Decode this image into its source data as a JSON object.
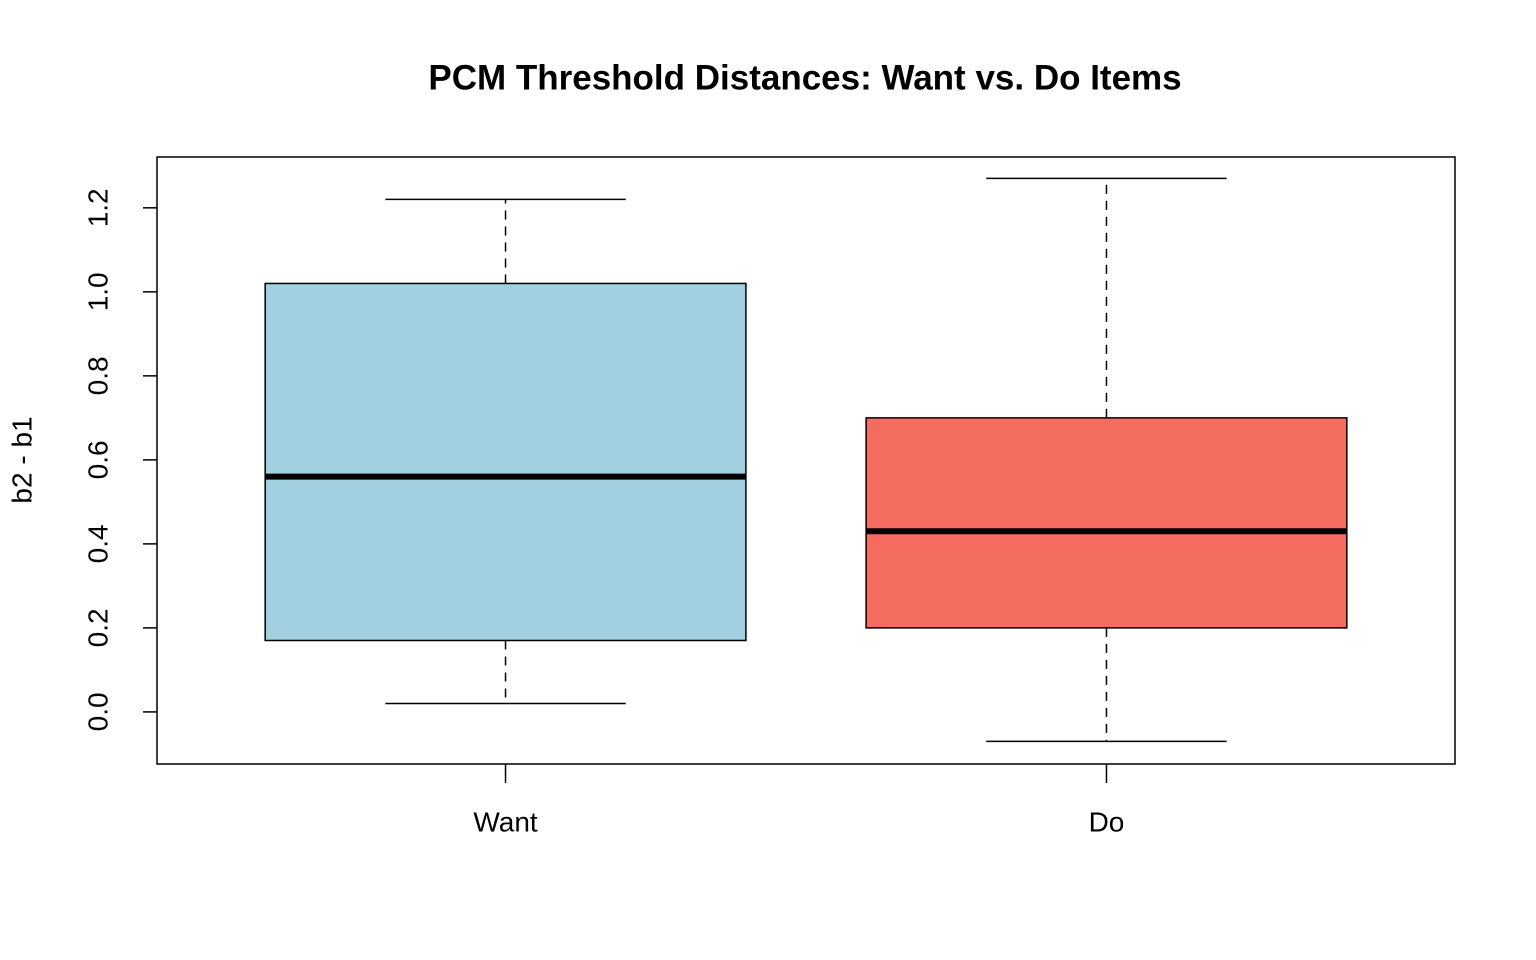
{
  "chart_data": {
    "type": "boxplot",
    "title": "PCM Threshold Distances: Want vs. Do Items",
    "y_label": "b2 - b1",
    "categories": [
      "Want",
      "Do"
    ],
    "boxes": [
      {
        "whisker_low": 0.02,
        "q1": 0.17,
        "median": 0.56,
        "q3": 1.02,
        "whisker_high": 1.22,
        "color": "#a0cfe0"
      },
      {
        "whisker_low": -0.07,
        "q1": 0.2,
        "median": 0.43,
        "q3": 0.7,
        "whisker_high": 1.27,
        "color": "#f46b60"
      }
    ],
    "ylim": [
      -0.124,
      1.321
    ],
    "yticks": [
      {
        "value": 0,
        "label": "0.0"
      },
      0.2,
      0.4,
      0.6,
      0.8,
      {
        "value": 1,
        "label": "1.0"
      },
      1.2
    ]
  }
}
